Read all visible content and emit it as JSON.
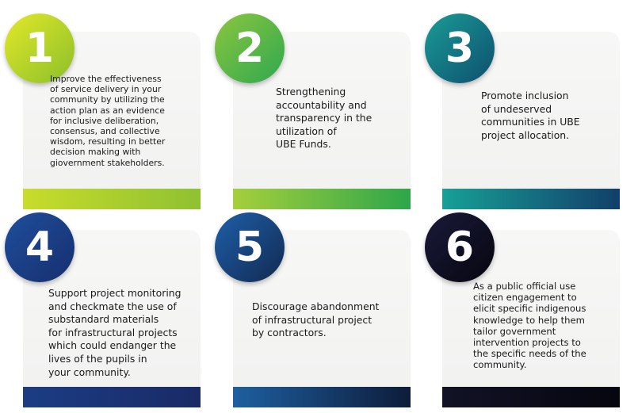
{
  "cards": [
    {
      "number": "1",
      "text": "Improve the effectiveness\nof service delivery in your\ncommunity by utilizing the\naction plan as an evidence\nfor inclusive deliberation,\nconsensus, and collective\nwisdom, resulting in better\ndecision making with\ngiovernment stakeholders.",
      "circle_gradient": [
        "#e3e82a",
        "#8cbf2a"
      ],
      "bar_gradient": [
        "#c8dc2b",
        "#8fc131"
      ]
    },
    {
      "number": "2",
      "text": "Strengthening\naccountability and\ntransparency in the\nutilization of\nUBE Funds.",
      "circle_gradient": [
        "#8cc63f",
        "#2fa84f"
      ],
      "bar_gradient": [
        "#a6cf3c",
        "#2ea64a"
      ]
    },
    {
      "number": "3",
      "text": "Promote inclusion\nof undeserved\ncommunities in UBE\nproject allocation.",
      "circle_gradient": [
        "#1a9c96",
        "#0d4f6e"
      ],
      "bar_gradient": [
        "#17a096",
        "#123f6a"
      ]
    },
    {
      "number": "4",
      "text": "Support project monitoring\nand checkmate the use of\nsubstandard materials\nfor infrastructural projects\nwhich could endanger the\nlives of the pupils in\nyour community.",
      "circle_gradient": [
        "#1f4e9c",
        "#162f6e"
      ],
      "bar_gradient": [
        "#1b3d84",
        "#1a2a66"
      ]
    },
    {
      "number": "5",
      "text": "Discourage abandonment\nof infrastructural project\nby contractors.",
      "circle_gradient": [
        "#1e5fa8",
        "#122a52"
      ],
      "bar_gradient": [
        "#1e5fa0",
        "#0d1c3a"
      ]
    },
    {
      "number": "6",
      "text": "As a public official use\ncitizen engagement to\nelicit specific indigenous\nknowledge to help them\ntailor government\nintervention projects to\nthe specific needs of the\ncommunity.",
      "circle_gradient": [
        "#1a1a3a",
        "#06060f"
      ],
      "bar_gradient": [
        "#121226",
        "#06060f"
      ]
    }
  ]
}
